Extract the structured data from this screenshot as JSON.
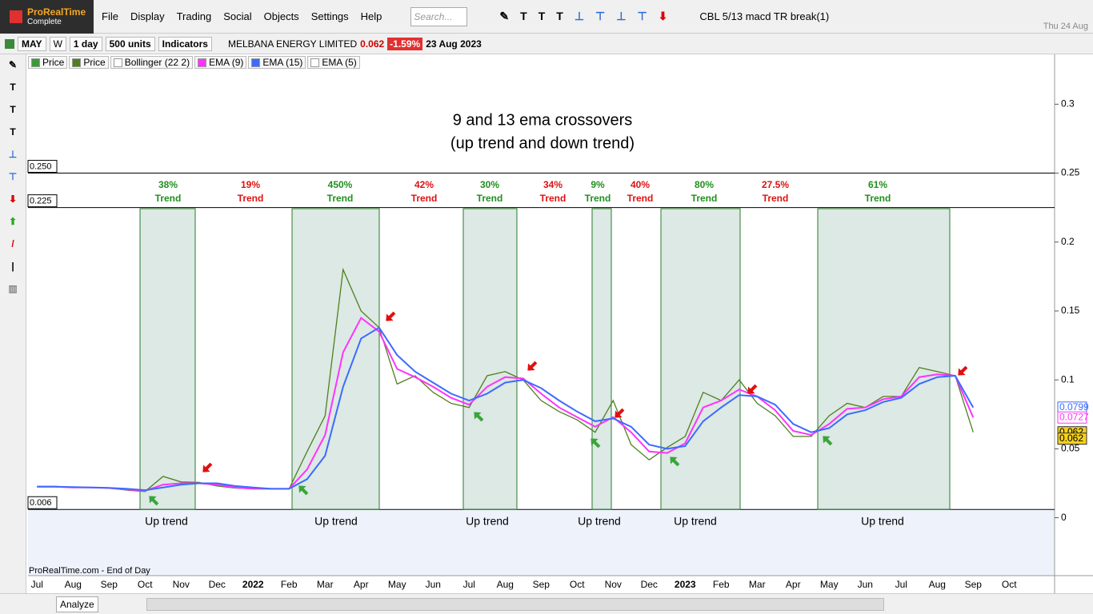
{
  "app": {
    "logo": "ProRealTime",
    "edition": "Complete",
    "menu": [
      "File",
      "Display",
      "Trading",
      "Social",
      "Objects",
      "Settings",
      "Help"
    ],
    "search_placeholder": "Search...",
    "system": "CBL 5/13 macd TR break(1)",
    "date": "Thu 24 Aug"
  },
  "toolbar": {
    "template": "MAY",
    "period_button": "W",
    "timeframe": "1 day",
    "units": "500 units",
    "indicators": "Indicators",
    "instrument": "MELBANA ENERGY LIMITED",
    "price": "0.062",
    "change": "-1.59%",
    "date": "23 Aug 2023"
  },
  "footer": {
    "source": "ProRealTime.com - End of Day",
    "analyze": "Analyze"
  },
  "chart_data": {
    "type": "line",
    "title": "9 and 13 ema crossovers",
    "subtitle": "(up trend and down trend)",
    "categories": [
      "Jul",
      null,
      "Aug",
      null,
      "Sep",
      null,
      "Oct",
      null,
      "Nov",
      null,
      "Dec",
      null,
      "2022",
      null,
      "Feb",
      null,
      "Mar",
      null,
      "Apr",
      null,
      "May",
      null,
      "Jun",
      null,
      "Jul",
      null,
      "Aug",
      null,
      "Sep",
      null,
      "Oct",
      null,
      "Nov",
      null,
      "Dec",
      null,
      "2023",
      null,
      "Feb",
      null,
      "Mar",
      null,
      "Apr",
      null,
      "May",
      null,
      "Jun",
      null,
      "Jul",
      null,
      "Aug",
      null,
      "Sep",
      null,
      "Oct",
      null
    ],
    "series": [
      {
        "name": "Price",
        "color": "#4f7f1f",
        "values": [
          0.0227,
          0.0227,
          0.022,
          0.022,
          0.0215,
          0.02,
          0.019,
          0.03,
          0.026,
          0.0256,
          0.023,
          0.0215,
          0.021,
          0.021,
          0.021,
          0.048,
          0.074,
          0.18,
          0.15,
          0.138,
          0.097,
          0.103,
          0.091,
          0.083,
          0.08,
          0.103,
          0.106,
          0.1,
          0.085,
          0.077,
          0.071,
          0.062,
          0.085,
          0.053,
          0.042,
          0.051,
          0.059,
          0.091,
          0.085,
          0.1,
          0.083,
          0.074,
          0.059,
          0.059,
          0.074,
          0.083,
          0.08,
          0.088,
          0.088,
          0.109,
          0.106,
          0.103,
          0.062,
          null,
          null,
          null
        ]
      },
      {
        "name": "EMA (9)",
        "color": "#ff33ff",
        "values": [
          0.0225,
          0.0225,
          0.022,
          0.022,
          0.0215,
          0.0205,
          0.0195,
          0.024,
          0.025,
          0.025,
          0.024,
          0.022,
          0.021,
          0.021,
          0.021,
          0.035,
          0.06,
          0.12,
          0.145,
          0.135,
          0.108,
          0.102,
          0.095,
          0.087,
          0.082,
          0.095,
          0.102,
          0.101,
          0.09,
          0.08,
          0.073,
          0.066,
          0.073,
          0.062,
          0.048,
          0.047,
          0.054,
          0.08,
          0.085,
          0.093,
          0.088,
          0.078,
          0.063,
          0.06,
          0.068,
          0.079,
          0.08,
          0.086,
          0.088,
          0.102,
          0.104,
          0.103,
          0.0727,
          null,
          null,
          null
        ]
      },
      {
        "name": "EMA (15)",
        "color": "#3d6bff",
        "values": [
          0.0225,
          0.0225,
          0.0222,
          0.022,
          0.0217,
          0.021,
          0.02,
          0.022,
          0.024,
          0.025,
          0.025,
          0.023,
          0.022,
          0.021,
          0.021,
          0.028,
          0.045,
          0.095,
          0.13,
          0.138,
          0.118,
          0.106,
          0.098,
          0.09,
          0.085,
          0.09,
          0.098,
          0.1,
          0.094,
          0.085,
          0.077,
          0.07,
          0.072,
          0.066,
          0.053,
          0.05,
          0.052,
          0.07,
          0.08,
          0.089,
          0.088,
          0.082,
          0.068,
          0.062,
          0.065,
          0.075,
          0.078,
          0.084,
          0.087,
          0.097,
          0.102,
          0.103,
          0.0799,
          null,
          null,
          null
        ]
      }
    ],
    "indicators": [
      "Price",
      "Bollinger (22 2)",
      "EMA (5)"
    ],
    "ylim": [
      -0.042,
      0.335
    ],
    "yticks": [
      0,
      0.05,
      0.1,
      0.15,
      0.2,
      0.25,
      0.3
    ],
    "levels": [
      {
        "value": 0.25,
        "label": "0.250"
      },
      {
        "value": 0.225,
        "label": "0.225"
      },
      {
        "value": 0.006,
        "label": "0.006"
      }
    ],
    "trends": [
      {
        "change": "38%",
        "label": "Trend",
        "direction": "Up trend",
        "color": "#1f8f1f"
      },
      {
        "change": "19%",
        "label": "Trend",
        "color": "#e01010"
      },
      {
        "change": "450%",
        "label": "Trend",
        "direction": "Up trend",
        "color": "#1f8f1f"
      },
      {
        "change": "42%",
        "label": "Trend",
        "color": "#e01010"
      },
      {
        "change": "30%",
        "label": "Trend",
        "direction": "Up trend",
        "color": "#1f8f1f"
      },
      {
        "change": "34%",
        "label": "Trend",
        "color": "#e01010"
      },
      {
        "change": "9%",
        "label": "Trend",
        "direction": "Up trend",
        "color": "#1f8f1f"
      },
      {
        "change": "40%",
        "label": "Trend",
        "color": "#e01010"
      },
      {
        "change": "80%",
        "label": "Trend",
        "direction": "Up trend",
        "color": "#1f8f1f"
      },
      {
        "change": "27.5%",
        "label": "Trend",
        "color": "#e01010"
      },
      {
        "change": "61%",
        "label": "Trend",
        "direction": "Up trend",
        "color": "#1f8f1f"
      }
    ]
  }
}
